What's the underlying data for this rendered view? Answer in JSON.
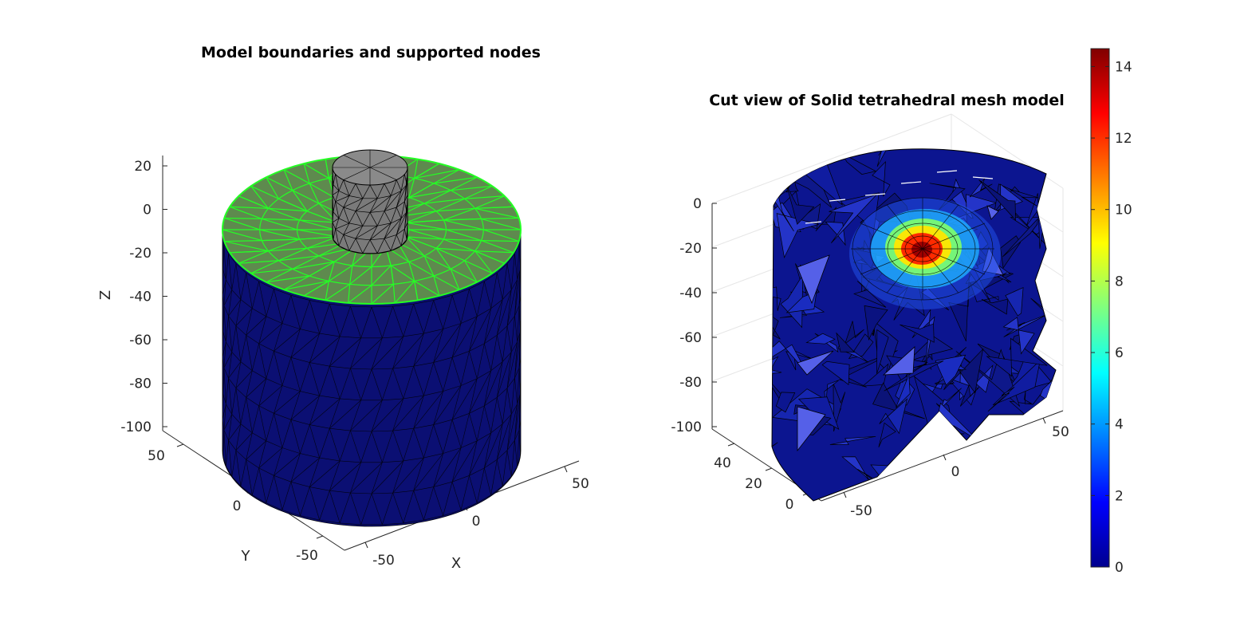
{
  "chart_data": [
    {
      "type": "3d-mesh",
      "title": "Model boundaries and supported nodes",
      "xlabel": "X",
      "ylabel": "Y",
      "zlabel": "Z",
      "xticks": [
        "-50",
        "0",
        "50"
      ],
      "yticks": [
        "-50",
        "0",
        "50"
      ],
      "zticks": [
        "20",
        "0",
        "-20",
        "-40",
        "-60",
        "-80",
        "-100"
      ],
      "xlim": [
        -60,
        60
      ],
      "ylim": [
        -60,
        60
      ],
      "zlim": [
        -100,
        20
      ],
      "colors": {
        "body": "#0b0f73",
        "supported_face": "#5e8a4e",
        "supported_edges": "#24ff24",
        "indentor": "#808080"
      }
    },
    {
      "type": "3d-mesh",
      "title": "Cut view of Solid tetrahedral mesh model",
      "xticks": [
        "-50",
        "0",
        "50"
      ],
      "yticks": [
        "0",
        "20",
        "40"
      ],
      "zticks": [
        "0",
        "-20",
        "-40",
        "-60",
        "-80",
        "-100"
      ],
      "zlim": [
        -100,
        0
      ],
      "colormap": "jet",
      "colorbar": {
        "min": 0,
        "max": 14.5,
        "ticks": [
          "0",
          "2",
          "4",
          "6",
          "8",
          "10",
          "12",
          "14"
        ]
      }
    }
  ]
}
